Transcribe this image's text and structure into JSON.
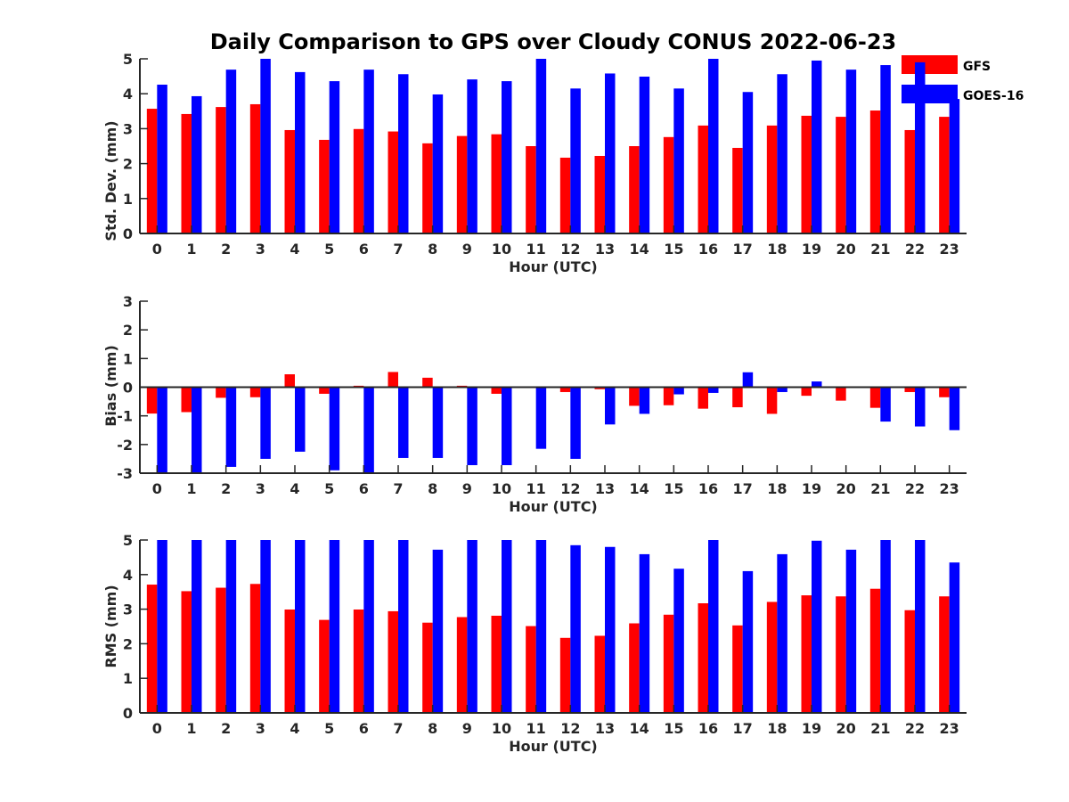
{
  "colors": {
    "GFS": "#ff0000",
    "GOES-16": "#0000ff",
    "axis": "#262626",
    "background": "#ffffff"
  },
  "chart_data": {
    "title": "Daily Comparison to GPS over Cloudy CONUS 2022-06-23",
    "legend": {
      "placement": "top-right",
      "entries": [
        {
          "name": "GFS",
          "color": "#ff0000"
        },
        {
          "name": "GOES-16",
          "color": "#0000ff"
        }
      ]
    },
    "panels": [
      {
        "type": "bar",
        "xlabel": "Hour (UTC)",
        "ylabel": "Std. Dev. (mm)",
        "ylim": [
          0,
          5
        ],
        "yticks": [
          0,
          1,
          2,
          3,
          4,
          5
        ],
        "categories": [
          "0",
          "1",
          "2",
          "3",
          "4",
          "5",
          "6",
          "7",
          "8",
          "9",
          "10",
          "11",
          "12",
          "13",
          "14",
          "15",
          "16",
          "17",
          "18",
          "19",
          "20",
          "21",
          "22",
          "23"
        ],
        "grid": false,
        "series": [
          {
            "name": "GFS",
            "color": "#ff0000",
            "values": [
              3.57,
              3.42,
              3.62,
              3.7,
              2.96,
              2.68,
              2.99,
              2.92,
              2.58,
              2.79,
              2.84,
              2.5,
              2.17,
              2.22,
              2.5,
              2.76,
              3.09,
              2.45,
              3.09,
              3.37,
              3.34,
              3.52,
              2.96,
              3.34
            ]
          },
          {
            "name": "GOES-16",
            "color": "#0000ff",
            "values": [
              4.26,
              3.93,
              4.69,
              5.0,
              4.62,
              4.36,
              4.69,
              4.56,
              3.98,
              4.41,
              4.36,
              5.0,
              4.15,
              4.58,
              4.49,
              4.15,
              5.0,
              4.05,
              4.56,
              4.95,
              4.69,
              4.82,
              4.9,
              3.85
            ]
          }
        ]
      },
      {
        "type": "bar",
        "xlabel": "Hour (UTC)",
        "ylabel": "Bias (mm)",
        "ylim": [
          -3,
          3
        ],
        "yticks": [
          -3,
          -2,
          -1,
          0,
          1,
          2,
          3
        ],
        "categories": [
          "0",
          "1",
          "2",
          "3",
          "4",
          "5",
          "6",
          "7",
          "8",
          "9",
          "10",
          "11",
          "12",
          "13",
          "14",
          "15",
          "16",
          "17",
          "18",
          "19",
          "20",
          "21",
          "22",
          "23"
        ],
        "grid": false,
        "series": [
          {
            "name": "GFS",
            "color": "#ff0000",
            "values": [
              -0.92,
              -0.87,
              -0.37,
              -0.35,
              0.45,
              -0.23,
              0.05,
              0.53,
              0.33,
              0.05,
              -0.23,
              -0.03,
              -0.17,
              -0.07,
              -0.65,
              -0.63,
              -0.75,
              -0.7,
              -0.93,
              -0.3,
              -0.47,
              -0.72,
              -0.17,
              -0.35
            ]
          },
          {
            "name": "GOES-16",
            "color": "#0000ff",
            "values": [
              -2.98,
              -3.0,
              -2.78,
              -2.5,
              -2.25,
              -2.9,
              -3.0,
              -2.47,
              -2.47,
              -2.72,
              -2.72,
              -2.15,
              -2.5,
              -1.3,
              -0.93,
              -0.25,
              -0.2,
              0.52,
              -0.17,
              0.2,
              0.0,
              -1.2,
              -1.37,
              -1.5
            ]
          }
        ]
      },
      {
        "type": "bar",
        "xlabel": "Hour (UTC)",
        "ylabel": "RMS (mm)",
        "ylim": [
          0,
          5
        ],
        "yticks": [
          0,
          1,
          2,
          3,
          4,
          5
        ],
        "categories": [
          "0",
          "1",
          "2",
          "3",
          "4",
          "5",
          "6",
          "7",
          "8",
          "9",
          "10",
          "11",
          "12",
          "13",
          "14",
          "15",
          "16",
          "17",
          "18",
          "19",
          "20",
          "21",
          "22",
          "23"
        ],
        "grid": false,
        "series": [
          {
            "name": "GFS",
            "color": "#ff0000",
            "values": [
              3.71,
              3.52,
              3.62,
              3.73,
              2.99,
              2.69,
              2.99,
              2.94,
              2.61,
              2.77,
              2.81,
              2.51,
              2.17,
              2.23,
              2.59,
              2.84,
              3.17,
              2.53,
              3.21,
              3.4,
              3.37,
              3.59,
              2.97,
              3.37
            ]
          },
          {
            "name": "GOES-16",
            "color": "#0000ff",
            "values": [
              5.0,
              5.0,
              5.0,
              5.0,
              5.0,
              5.0,
              5.0,
              5.0,
              4.72,
              5.0,
              5.0,
              5.0,
              4.85,
              4.8,
              4.59,
              4.17,
              5.0,
              4.1,
              4.59,
              4.98,
              4.72,
              5.0,
              5.0,
              4.35
            ]
          }
        ]
      }
    ]
  }
}
